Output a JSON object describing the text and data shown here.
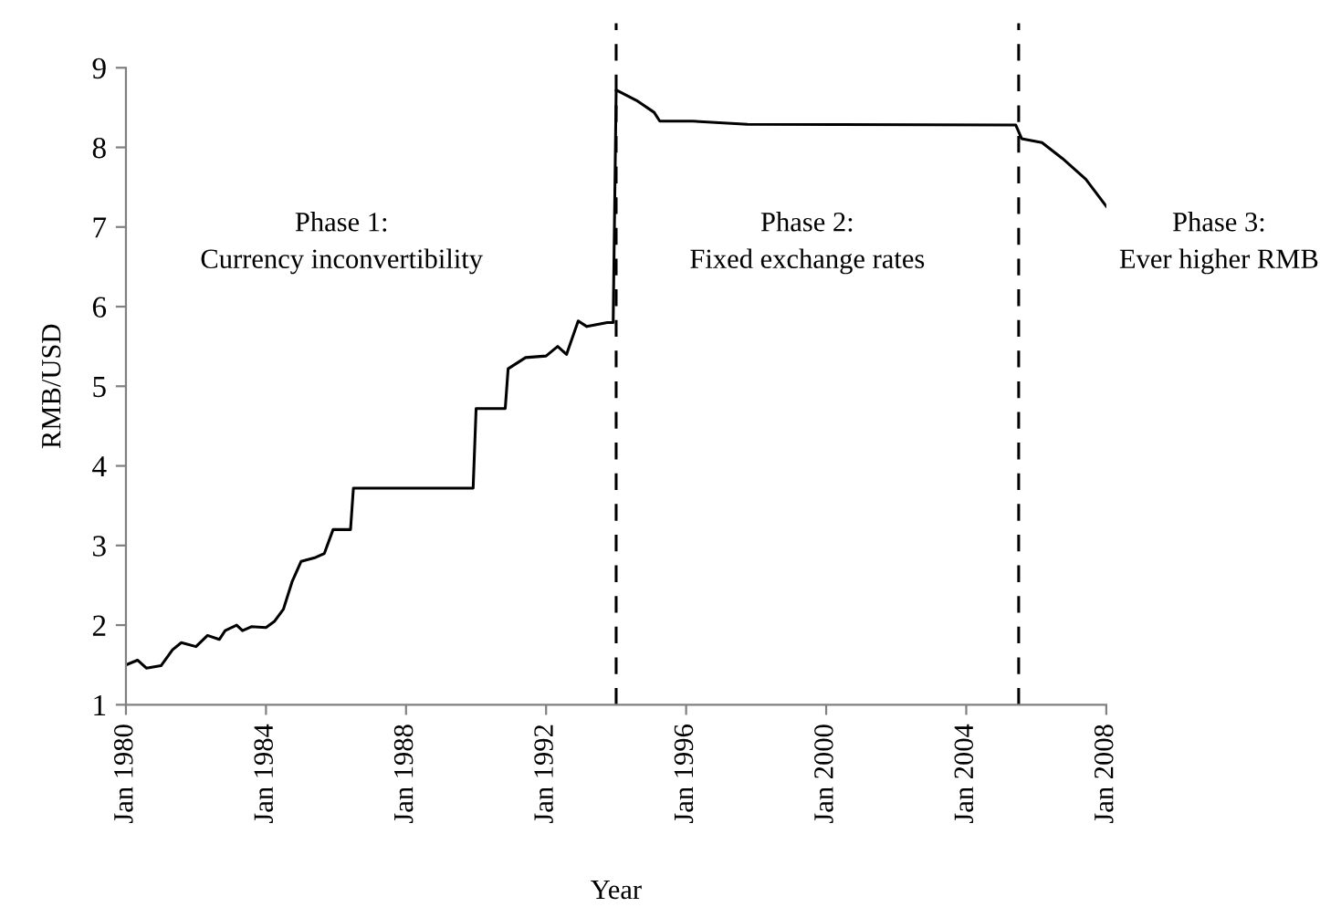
{
  "chart_data": {
    "type": "line",
    "xlabel": "Year",
    "ylabel": "RMB/USD",
    "x": [
      "1980-01",
      "1980-05",
      "1980-08",
      "1981-01",
      "1981-05",
      "1981-08",
      "1982-01",
      "1982-05",
      "1982-09",
      "1982-11",
      "1983-03",
      "1983-05",
      "1983-08",
      "1984-01",
      "1984-04",
      "1984-07",
      "1984-10",
      "1985-01",
      "1985-06",
      "1985-09",
      "1985-12",
      "1986-06",
      "1986-07",
      "1989-12",
      "1990-01",
      "1990-11",
      "1990-12",
      "1991-06",
      "1992-01",
      "1992-05",
      "1992-08",
      "1992-12",
      "1993-03",
      "1993-10",
      "1993-12",
      "1994-01",
      "1994-08",
      "1995-02",
      "1995-04",
      "1996-03",
      "1997-10",
      "2005-06",
      "2005-08",
      "2006-03",
      "2006-10",
      "2007-06",
      "2008-01"
    ],
    "series": [
      {
        "color": "#000000",
        "values": [
          1.5,
          1.56,
          1.46,
          1.49,
          1.69,
          1.78,
          1.73,
          1.87,
          1.82,
          1.93,
          2.0,
          1.93,
          1.98,
          1.97,
          2.05,
          2.2,
          2.55,
          2.8,
          2.85,
          2.9,
          3.2,
          3.2,
          3.72,
          3.72,
          4.72,
          4.72,
          5.22,
          5.36,
          5.38,
          5.5,
          5.4,
          5.82,
          5.75,
          5.8,
          5.8,
          8.72,
          8.59,
          8.44,
          8.33,
          8.33,
          8.29,
          8.28,
          8.11,
          8.06,
          7.86,
          7.6,
          7.26
        ]
      }
    ],
    "xlim": [
      "1980-01",
      "2008-01"
    ],
    "xticks": [
      {
        "value": "1980-01",
        "label": "Jan 1980"
      },
      {
        "value": "1984-01",
        "label": "Jan 1984"
      },
      {
        "value": "1988-01",
        "label": "Jan 1988"
      },
      {
        "value": "1992-01",
        "label": "Jan 1992"
      },
      {
        "value": "1996-01",
        "label": "Jan 1996"
      },
      {
        "value": "2000-01",
        "label": "Jan 2000"
      },
      {
        "value": "2004-01",
        "label": "Jan 2004"
      },
      {
        "value": "2008-01",
        "label": "Jan 2008"
      }
    ],
    "ylim": [
      1,
      9
    ],
    "yticks": [
      1,
      2,
      3,
      4,
      5,
      6,
      7,
      8,
      9
    ],
    "ref_lines": [
      {
        "axis": "x",
        "value": "1994-01",
        "line_style": "dashed",
        "color": "#000000"
      },
      {
        "axis": "x",
        "value": "2005-07",
        "line_style": "dashed",
        "color": "#000000"
      }
    ],
    "annotations": [
      "Phase 1:\nCurrency inconvertibility",
      "Phase 2:\nFixed exchange rates",
      "Phase 3:\nEver higher RMB"
    ],
    "grid": false,
    "legend": false,
    "marker": "none",
    "line_style": "solid"
  }
}
